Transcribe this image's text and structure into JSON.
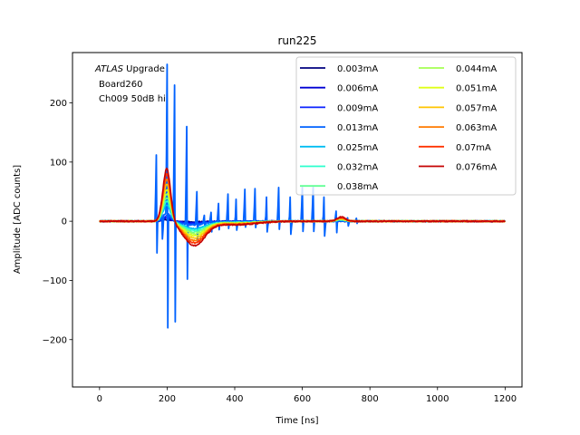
{
  "chart_data": {
    "type": "line",
    "title": "run225",
    "xlabel": "Time [ns]",
    "ylabel": "Amplitude [ADC counts]",
    "xlim": [
      -80,
      1250
    ],
    "ylim": [
      -280,
      285
    ],
    "xticks": [
      0,
      200,
      400,
      600,
      800,
      1000,
      1200
    ],
    "yticks": [
      -200,
      -100,
      0,
      100,
      200
    ],
    "grid": false,
    "legend_placement": "top-right",
    "legend_columns": 2,
    "annotations": {
      "line1_italic": "ATLAS",
      "line1_rest": " Upgrade",
      "line2": "Board260",
      "line3": "Ch009 50dB hi"
    },
    "series": [
      {
        "name": "0.003mA",
        "color": "#00007f",
        "scale": 0.03
      },
      {
        "name": "0.006mA",
        "color": "#0000d4",
        "scale": 0.06
      },
      {
        "name": "0.009mA",
        "color": "#0a22ff",
        "scale": 0.1
      },
      {
        "name": "0.013mA",
        "color": "#0062ff",
        "scale": 0.15,
        "spikes": true
      },
      {
        "name": "0.025mA",
        "color": "#00bdf2",
        "scale": 0.3
      },
      {
        "name": "0.032mA",
        "color": "#2affcd",
        "scale": 0.38
      },
      {
        "name": "0.038mA",
        "color": "#62ff95",
        "scale": 0.45
      },
      {
        "name": "0.044mA",
        "color": "#a4ff53",
        "scale": 0.52
      },
      {
        "name": "0.051mA",
        "color": "#dfff18",
        "scale": 0.6
      },
      {
        "name": "0.057mA",
        "color": "#ffc400",
        "scale": 0.7
      },
      {
        "name": "0.063mA",
        "color": "#ff7a00",
        "scale": 0.8
      },
      {
        "name": "0.07mA",
        "color": "#ff3300",
        "scale": 0.9
      },
      {
        "name": "0.076mA",
        "color": "#c40000",
        "scale": 1.0
      }
    ],
    "pulse": {
      "peak_time": 199,
      "peak_value": 90,
      "undershoot_time": 280,
      "undershoot_value": -40,
      "end_time": 1200
    },
    "spike_train": [
      {
        "t": 168,
        "hi": 112,
        "lo": -75
      },
      {
        "t": 185,
        "hi": 40,
        "lo": -30
      },
      {
        "t": 200,
        "hi": 265,
        "lo": -252
      },
      {
        "t": 222,
        "hi": 230,
        "lo": -238
      },
      {
        "t": 258,
        "hi": 160,
        "lo": -137
      },
      {
        "t": 288,
        "hi": 50,
        "lo": -45
      },
      {
        "t": 310,
        "hi": 10,
        "lo": -30
      },
      {
        "t": 330,
        "hi": 15,
        "lo": -25
      },
      {
        "t": 352,
        "hi": 30,
        "lo": -20
      },
      {
        "t": 380,
        "hi": 46,
        "lo": -17
      },
      {
        "t": 405,
        "hi": 52,
        "lo": -15
      },
      {
        "t": 430,
        "hi": 54,
        "lo": -14
      },
      {
        "t": 460,
        "hi": 55,
        "lo": -15
      },
      {
        "t": 495,
        "hi": 57,
        "lo": -18
      },
      {
        "t": 530,
        "hi": 57,
        "lo": -19
      },
      {
        "t": 565,
        "hi": 57,
        "lo": -22
      },
      {
        "t": 600,
        "hi": 57,
        "lo": -24
      },
      {
        "t": 632,
        "hi": 57,
        "lo": -24
      },
      {
        "t": 665,
        "hi": 57,
        "lo": -25
      },
      {
        "t": 700,
        "hi": 17,
        "lo": -27
      },
      {
        "t": 735,
        "hi": 8,
        "lo": -8
      },
      {
        "t": 760,
        "hi": 5,
        "lo": -5
      }
    ]
  }
}
